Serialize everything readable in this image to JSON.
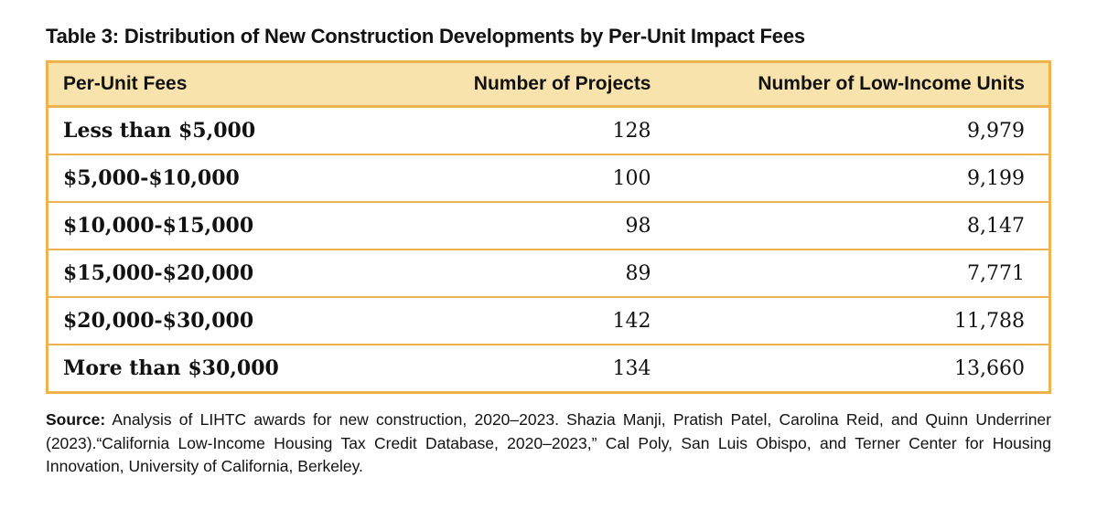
{
  "title": "Table 3: Distribution of New Construction Developments by Per-Unit Impact Fees",
  "table": {
    "columns": [
      "Per-Unit Fees",
      "Number of Projects",
      "Number of Low-Income Units"
    ],
    "rows": [
      {
        "fees": "Less than $5,000",
        "projects": "128",
        "units": "9,979"
      },
      {
        "fees": "$5,000-$10,000",
        "projects": "100",
        "units": "9,199"
      },
      {
        "fees": "$10,000-$15,000",
        "projects": "98",
        "units": "8,147"
      },
      {
        "fees": "$15,000-$20,000",
        "projects": "89",
        "units": "7,771"
      },
      {
        "fees": "$20,000-$30,000",
        "projects": "142",
        "units": "11,788"
      },
      {
        "fees": "More than $30,000",
        "projects": "134",
        "units": "13,660"
      }
    ]
  },
  "source": {
    "label": "Source:",
    "text": " Analysis of LIHTC awards for new construction, 2020–2023. Shazia Manji, Pratish Patel, Carolina Reid, and Quinn Underriner (2023).“California Low-Income Housing Tax Credit Database, 2020–2023,” Cal Poly, San Luis Obispo, and Terner Center for Housing Innovation, University of California, Berkeley."
  },
  "colors": {
    "border_gold": "#EFB24C",
    "header_background": "#F9E3AC",
    "text": "#121212",
    "page_background": "#FFFFFF"
  },
  "chart_data": {
    "type": "table",
    "title": "Table 3: Distribution of New Construction Developments by Per-Unit Impact Fees",
    "columns": [
      "Per-Unit Fees",
      "Number of Projects",
      "Number of Low-Income Units"
    ],
    "categories": [
      "Less than $5,000",
      "$5,000-$10,000",
      "$10,000-$15,000",
      "$15,000-$20,000",
      "$20,000-$30,000",
      "More than $30,000"
    ],
    "series": [
      {
        "name": "Number of Projects",
        "values": [
          128,
          100,
          98,
          89,
          142,
          134
        ]
      },
      {
        "name": "Number of Low-Income Units",
        "values": [
          9979,
          9199,
          8147,
          7771,
          11788,
          13660
        ]
      }
    ],
    "layout": {
      "header_fill": "#F9E3AC",
      "grid": "horizontal gold rules",
      "alignment": [
        "left",
        "right",
        "right"
      ]
    }
  }
}
